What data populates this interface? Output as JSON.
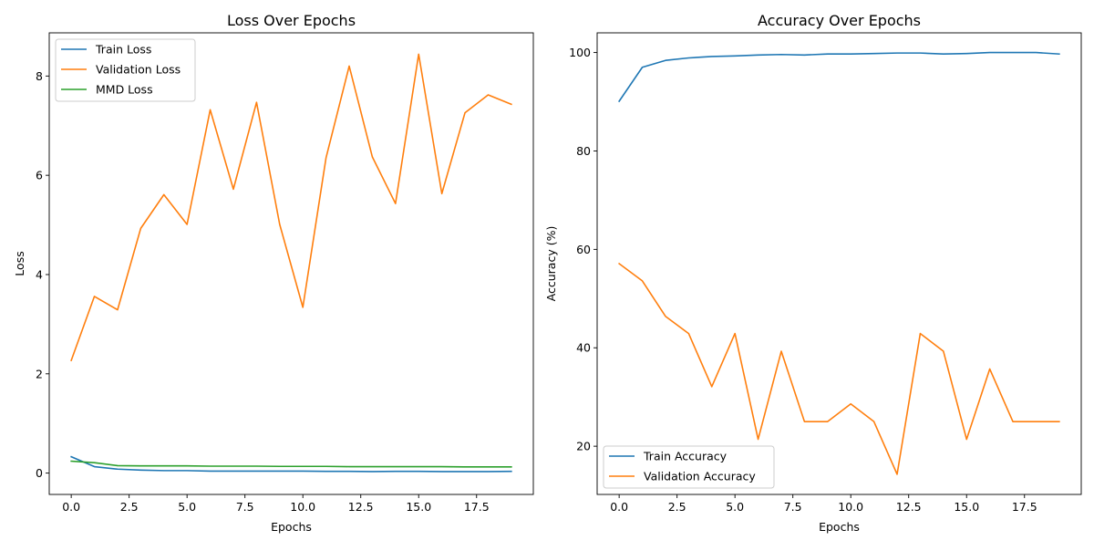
{
  "chart_data": [
    {
      "type": "line",
      "title": "Loss Over Epochs",
      "xlabel": "Epochs",
      "ylabel": "Loss",
      "xlim": [
        -0.95,
        19.95
      ],
      "ylim": [
        -0.43,
        8.87
      ],
      "xticks": [
        0,
        2.5,
        5,
        7.5,
        10,
        12.5,
        15,
        17.5
      ],
      "xtick_labels": [
        "0.0",
        "2.5",
        "5.0",
        "7.5",
        "10.0",
        "12.5",
        "15.0",
        "17.5"
      ],
      "yticks": [
        0,
        2,
        4,
        6,
        8
      ],
      "ytick_labels": [
        "0",
        "2",
        "4",
        "6",
        "8"
      ],
      "legend_position": "upper-left",
      "x": [
        0,
        1,
        2,
        3,
        4,
        5,
        6,
        7,
        8,
        9,
        10,
        11,
        12,
        13,
        14,
        15,
        16,
        17,
        18,
        19
      ],
      "series": [
        {
          "name": "Train Loss",
          "color": "#1f77b4",
          "values": [
            0.33,
            0.13,
            0.08,
            0.06,
            0.05,
            0.05,
            0.04,
            0.04,
            0.04,
            0.04,
            0.04,
            0.035,
            0.035,
            0.03,
            0.035,
            0.035,
            0.03,
            0.03,
            0.03,
            0.035
          ]
        },
        {
          "name": "Validation Loss",
          "color": "#ff7f0e",
          "values": [
            2.27,
            3.56,
            3.29,
            4.93,
            5.61,
            5.01,
            7.32,
            5.72,
            7.47,
            5.01,
            3.34,
            6.35,
            8.2,
            6.37,
            5.43,
            8.44,
            5.63,
            7.26,
            7.62,
            7.43
          ]
        },
        {
          "name": "MMD Loss",
          "color": "#2ca02c",
          "values": [
            0.24,
            0.21,
            0.15,
            0.145,
            0.145,
            0.145,
            0.14,
            0.14,
            0.14,
            0.135,
            0.135,
            0.135,
            0.13,
            0.13,
            0.13,
            0.13,
            0.13,
            0.125,
            0.125,
            0.125
          ]
        }
      ]
    },
    {
      "type": "line",
      "title": "Accuracy Over Epochs",
      "xlabel": "Epochs",
      "ylabel": "Accuracy (%)",
      "xlim": [
        -0.95,
        19.95
      ],
      "ylim": [
        10.2,
        104.0
      ],
      "xticks": [
        0,
        2.5,
        5,
        7.5,
        10,
        12.5,
        15,
        17.5
      ],
      "xtick_labels": [
        "0.0",
        "2.5",
        "5.0",
        "7.5",
        "10.0",
        "12.5",
        "15.0",
        "17.5"
      ],
      "yticks": [
        20,
        40,
        60,
        80,
        100
      ],
      "ytick_labels": [
        "20",
        "40",
        "60",
        "80",
        "100"
      ],
      "legend_position": "lower-left",
      "x": [
        0,
        1,
        2,
        3,
        4,
        5,
        6,
        7,
        8,
        9,
        10,
        11,
        12,
        13,
        14,
        15,
        16,
        17,
        18,
        19
      ],
      "series": [
        {
          "name": "Train Accuracy",
          "color": "#1f77b4",
          "values": [
            90.1,
            97.0,
            98.4,
            98.9,
            99.2,
            99.3,
            99.5,
            99.6,
            99.5,
            99.7,
            99.7,
            99.8,
            99.9,
            99.9,
            99.7,
            99.8,
            100.0,
            100.0,
            100.0,
            99.7
          ]
        },
        {
          "name": "Validation Accuracy",
          "color": "#ff7f0e",
          "values": [
            57.1,
            53.6,
            46.4,
            42.9,
            32.1,
            42.9,
            21.4,
            39.3,
            25.0,
            25.0,
            28.6,
            25.0,
            14.3,
            42.9,
            39.3,
            21.4,
            35.7,
            25.0,
            25.0,
            25.0
          ]
        }
      ]
    }
  ]
}
